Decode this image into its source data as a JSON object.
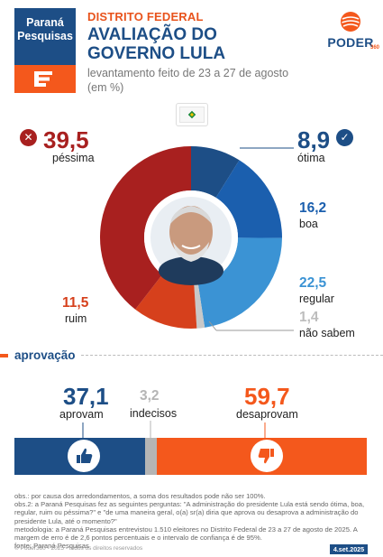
{
  "header": {
    "brand": "Paraná Pesquisas",
    "region": "DISTRITO FEDERAL",
    "title": "AVALIAÇÃO DO GOVERNO LULA",
    "subtitle": "levantamento feito de 23 a 27 de agosto (em %)",
    "outlet": "PODER",
    "outlet_number": "360"
  },
  "colors": {
    "pessima": "#a8201f",
    "ruim": "#d6401c",
    "nao_sabem": "#c8c8c8",
    "regular": "#3b93d4",
    "boa": "#1b5fae",
    "otima": "#1d4e86",
    "aprovam": "#1d4e86",
    "indecisos": "#b5b5b5",
    "desaprovam": "#f4581c"
  },
  "chart_data": [
    {
      "type": "pie",
      "title": "AVALIAÇÃO DO GOVERNO LULA",
      "slices": [
        {
          "label": "ótima",
          "value": 8.9,
          "display": "8,9"
        },
        {
          "label": "boa",
          "value": 16.2,
          "display": "16,2"
        },
        {
          "label": "regular",
          "value": 22.5,
          "display": "22,5"
        },
        {
          "label": "não sabem",
          "value": 1.4,
          "display": "1,4"
        },
        {
          "label": "ruim",
          "value": 11.5,
          "display": "11,5"
        },
        {
          "label": "péssima",
          "value": 39.5,
          "display": "39,5"
        }
      ]
    },
    {
      "type": "bar",
      "title": "aprovação",
      "segments": [
        {
          "label": "aprovam",
          "value": 37.1,
          "display": "37,1"
        },
        {
          "label": "indecisos",
          "value": 3.2,
          "display": "3,2"
        },
        {
          "label": "desaprovam",
          "value": 59.7,
          "display": "59,7"
        }
      ]
    }
  ],
  "section": {
    "approval_title": "aprovação"
  },
  "notes": [
    "obs.: por causa dos arredondamentos, a soma dos resultados pode não ser 100%.",
    "obs.2: a Paraná Pesquisas fez as seguintes perguntas: \"A administração do presidente Lula está sendo ótima, boa, regular, ruim ou péssima?\" e \"de uma maneira geral, o(a) sr(a) diria que aprova ou desaprova a administração do presidente Lula, até o momento?\"",
    "metodologia: a Paraná Pesquisas entrevistou 1.510 eleitores no Distrito Federal de 23 a 27 de agosto de 2025. A margem de erro é de 2,6 pontos percentuais e o intervalo de confiança é de 95%.",
    "fonte: Paraná Pesquisas"
  ],
  "footer": {
    "copyright": "© Poder360 - 2025 - todos os direitos reservados",
    "date": "4.set.2025"
  }
}
